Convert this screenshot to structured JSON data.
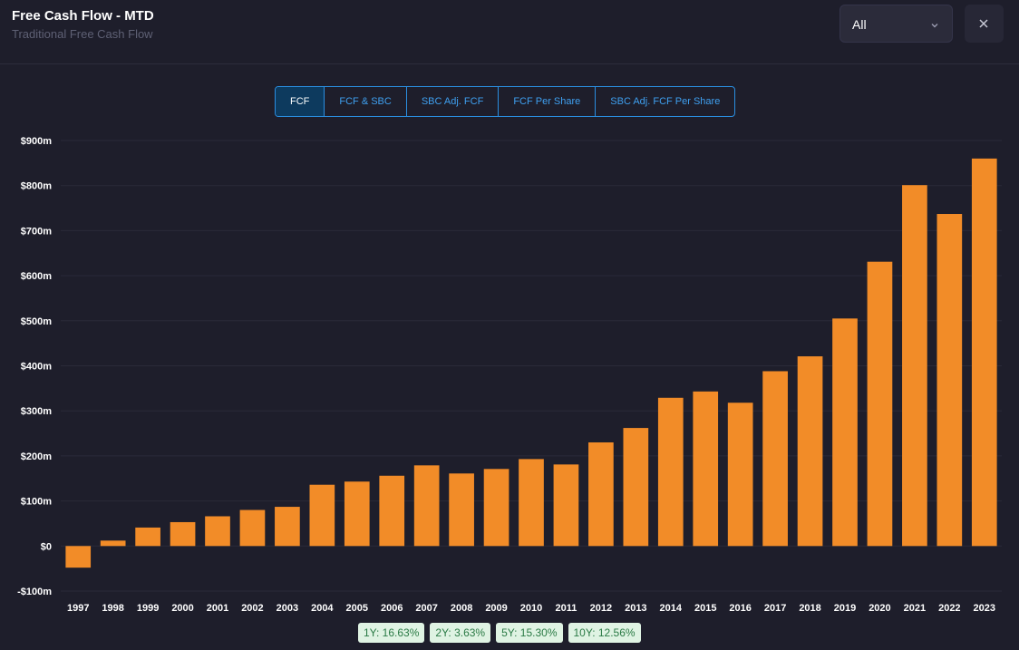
{
  "header": {
    "title": "Free Cash Flow - MTD",
    "subtitle": "Traditional Free Cash Flow",
    "period": "All"
  },
  "tabs": [
    "FCF",
    "FCF & SBC",
    "SBC Adj. FCF",
    "FCF Per Share",
    "SBC Adj. FCF Per Share"
  ],
  "active_tab": "FCF",
  "growth": [
    {
      "label": "1Y: 16.63%"
    },
    {
      "label": "2Y: 3.63%"
    },
    {
      "label": "5Y: 15.30%"
    },
    {
      "label": "10Y: 12.56%"
    }
  ],
  "colors": {
    "bar": "#f28c28",
    "accent": "#2a8ee0",
    "background": "#1e1e2b"
  },
  "chart_data": {
    "type": "bar",
    "categories": [
      "1997",
      "1998",
      "1999",
      "2000",
      "2001",
      "2002",
      "2003",
      "2004",
      "2005",
      "2006",
      "2007",
      "2008",
      "2009",
      "2010",
      "2011",
      "2012",
      "2013",
      "2014",
      "2015",
      "2016",
      "2017",
      "2018",
      "2019",
      "2020",
      "2021",
      "2022",
      "2023"
    ],
    "values": [
      -48,
      12,
      41,
      53,
      66,
      80,
      87,
      136,
      143,
      156,
      179,
      161,
      171,
      193,
      181,
      230,
      262,
      329,
      343,
      318,
      388,
      421,
      505,
      631,
      801,
      737,
      860
    ],
    "ylim": [
      -100,
      900
    ],
    "yticks": [
      -100,
      0,
      100,
      200,
      300,
      400,
      500,
      600,
      700,
      800,
      900
    ],
    "ytick_labels": [
      "-$100m",
      "$0",
      "$100m",
      "$200m",
      "$300m",
      "$400m",
      "$500m",
      "$600m",
      "$700m",
      "$800m",
      "$900m"
    ],
    "grid": true
  }
}
